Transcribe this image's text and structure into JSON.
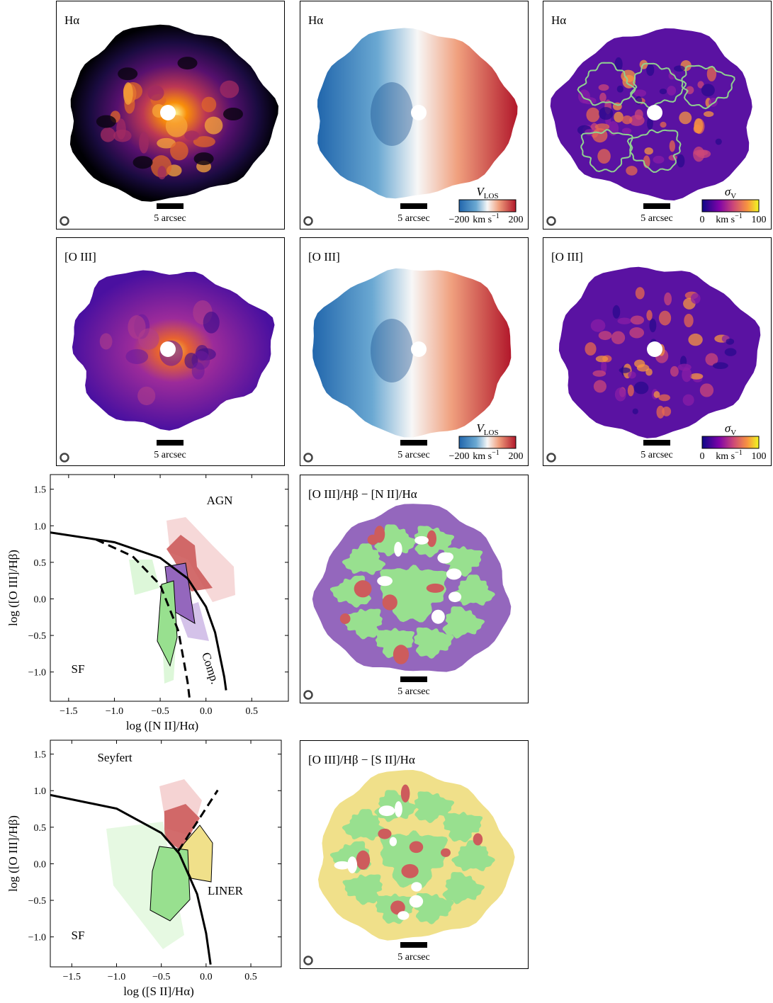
{
  "maps": [
    {
      "label": "Hα",
      "scale_bar": "5 arcsec"
    },
    {
      "label": "Hα",
      "scale_bar": "5 arcsec",
      "colorbar": {
        "title": {
          "symbol": "V",
          "subscript": "LOS"
        },
        "unit": {
          "base": "km s",
          "sup": "−1"
        },
        "lim": [
          -200,
          200
        ],
        "ticks": [
          {
            "value": -200,
            "label": "−200"
          },
          200
        ]
      }
    },
    {
      "label": "Hα",
      "scale_bar": "5 arcsec",
      "colorbar": {
        "title": {
          "symbol": "σ",
          "subscript": "V"
        },
        "unit": {
          "base": "km s",
          "sup": "−1"
        },
        "lim": [
          0,
          100
        ],
        "ticks": [
          0,
          100
        ]
      }
    },
    {
      "label": "[O III]",
      "scale_bar": "5 arcsec"
    },
    {
      "label": "[O III]",
      "scale_bar": "5 arcsec",
      "colorbar": {
        "title": {
          "symbol": "V",
          "subscript": "LOS"
        },
        "unit": {
          "base": "km s",
          "sup": "−1"
        },
        "lim": [
          -200,
          200
        ],
        "ticks": [
          {
            "value": -200,
            "label": "−200"
          },
          200
        ]
      }
    },
    {
      "label": "[O III]",
      "scale_bar": "5 arcsec",
      "colorbar": {
        "title": {
          "symbol": "σ",
          "subscript": "V"
        },
        "unit": {
          "base": "km s",
          "sup": "−1"
        },
        "lim": [
          0,
          100
        ],
        "ticks": [
          0,
          100
        ]
      }
    },
    {
      "label": "[O III]/Hβ − [N II]/Hα",
      "scale_bar": "5 arcsec"
    },
    {
      "label": "[O III]/Hβ − [S II]/Hα",
      "scale_bar": "5 arcsec"
    }
  ],
  "chart_data": [
    {
      "type": "line",
      "xlabel": "log ([N II]/Hα)",
      "ylabel": "log ([O III]/Hβ)",
      "xlim": [
        -1.7,
        0.9
      ],
      "ylim": [
        -1.4,
        1.7
      ],
      "xticks": [
        {
          "value": -1.5,
          "label": "−1.5"
        },
        {
          "value": -1.0,
          "label": "−1.0"
        },
        {
          "value": -0.5,
          "label": "−0.5"
        },
        {
          "value": 0.0,
          "label": "0.0"
        },
        0.5
      ],
      "yticks": [
        {
          "value": -1.0,
          "label": "−1.0"
        },
        {
          "value": -0.5,
          "label": "−0.5"
        },
        {
          "value": 0.0,
          "label": "0.0"
        },
        0.5,
        {
          "value": 1.0,
          "label": "1.0"
        },
        1.5
      ],
      "annotations": [
        "AGN",
        "SF",
        "Comp."
      ],
      "series": [
        {
          "color": "#000000",
          "dashed": false,
          "x": [
            -1.7,
            -1.0,
            -0.5,
            -0.2,
            0.0,
            0.1,
            0.2,
            0.22
          ],
          "y": [
            0.909,
            0.775,
            0.561,
            0.28,
            -0.108,
            -0.459,
            -1.069,
            -1.25
          ]
        },
        {
          "color": "#000000",
          "dashed": true,
          "x": [
            -1.2,
            -0.8,
            -0.5,
            -0.3,
            -0.2,
            -0.18
          ],
          "y": [
            0.812,
            0.582,
            0.191,
            -0.443,
            -1.14,
            -1.352
          ]
        }
      ]
    },
    {
      "type": "line",
      "xlabel": "log ([S II]/Hα)",
      "ylabel": "log ([O III]/Hβ)",
      "xlim": [
        -1.74,
        0.84
      ],
      "ylim": [
        -1.41,
        1.69
      ],
      "xticks": [
        {
          "value": -1.5,
          "label": "−1.5"
        },
        {
          "value": -1.0,
          "label": "−1.0"
        },
        {
          "value": -0.5,
          "label": "−0.5"
        },
        {
          "value": 0.0,
          "label": "0.0"
        },
        0.5
      ],
      "yticks": [
        {
          "value": -1.0,
          "label": "−1.0"
        },
        {
          "value": -0.5,
          "label": "−0.5"
        },
        {
          "value": 0.0,
          "label": "0.0"
        },
        0.5,
        {
          "value": 1.0,
          "label": "1.0"
        },
        1.5
      ],
      "annotations": [
        "Seyfert",
        "LINER",
        "SF"
      ],
      "series": [
        {
          "color": "#000000",
          "dashed": false,
          "x": [
            -1.74,
            -1.0,
            -0.5,
            -0.3,
            -0.1,
            0.0,
            0.05
          ],
          "y": [
            0.94,
            0.755,
            0.422,
            0.139,
            -0.414,
            -0.95,
            -1.378
          ]
        },
        {
          "color": "#000000",
          "dashed": true,
          "x": [
            -0.31,
            0.13
          ],
          "y": [
            0.174,
            1.006
          ]
        }
      ]
    }
  ]
}
